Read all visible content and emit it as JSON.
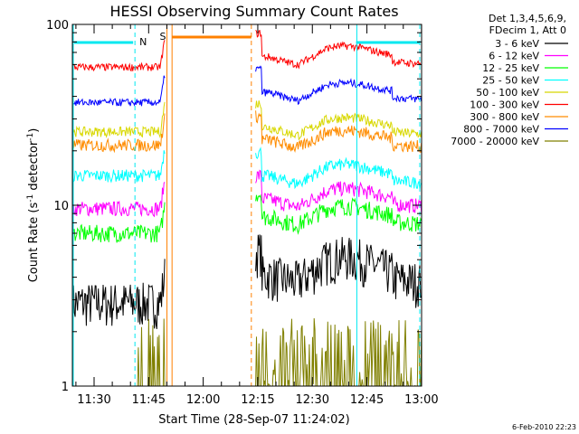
{
  "chart_data": {
    "type": "line",
    "title": "HESSI Observing Summary Count Rates",
    "xlabel": "Start Time (28-Sep-07 11:24:02)",
    "ylabel_main": "Count Rate (s",
    "ylabel_sup": "-1",
    "ylabel_tail": " detector",
    "ylabel_end": ")",
    "y_scale": "log",
    "ylim": [
      1,
      100
    ],
    "xlim_minutes": [
      0,
      96
    ],
    "x_ticks": [
      {
        "label": "11:30",
        "t": 5.97
      },
      {
        "label": "11:45",
        "t": 20.97
      },
      {
        "label": "12:00",
        "t": 35.97
      },
      {
        "label": "12:15",
        "t": 50.97
      },
      {
        "label": "12:30",
        "t": 65.97
      },
      {
        "label": "12:45",
        "t": 80.97
      },
      {
        "label": "13:00",
        "t": 95.97
      }
    ],
    "y_ticks": [
      {
        "label": "1",
        "v": 1
      },
      {
        "label": "10",
        "v": 10
      },
      {
        "label": "100",
        "v": 100
      }
    ],
    "legend_header": [
      "Det 1,3,4,5,6,9,",
      "FDecim 1, Att 0"
    ],
    "legend_position": "right",
    "flags": [
      {
        "label": "N",
        "color": "#00e8f0"
      },
      {
        "label": "S",
        "color": "#ff8000"
      }
    ],
    "series": [
      {
        "name": "3 - 6 keV",
        "color": "#000000",
        "pre": 2.9,
        "post": 4.1,
        "bump": 1.1,
        "noise": 0.18
      },
      {
        "name": "6 - 12 keV",
        "color": "#ff00ff",
        "pre": 9.6,
        "post": 10.8,
        "bump": 1.6,
        "noise": 0.06
      },
      {
        "name": "12 - 25 keV",
        "color": "#00ff00",
        "pre": 7.0,
        "post": 8.6,
        "bump": 1.3,
        "noise": 0.07
      },
      {
        "name": "25 - 50 keV",
        "color": "#00ffff",
        "pre": 14.6,
        "post": 14.5,
        "bump": 2.3,
        "noise": 0.05
      },
      {
        "name": "50 - 100 keV",
        "color": "#d8d800",
        "pre": 25.5,
        "post": 27.0,
        "bump": 3.5,
        "noise": 0.04
      },
      {
        "name": "100 - 300 keV",
        "color": "#ff0000",
        "pre": 58.0,
        "post": 66.0,
        "bump": 10.0,
        "noise": 0.03
      },
      {
        "name": "300 - 800 keV",
        "color": "#ff8c00",
        "pre": 21.5,
        "post": 23.0,
        "bump": 3.0,
        "noise": 0.05
      },
      {
        "name": "800 - 7000 keV",
        "color": "#0000ff",
        "pre": 37.0,
        "post": 42.0,
        "bump": 5.5,
        "noise": 0.03
      },
      {
        "name": "7000 - 20000 keV",
        "color": "#808000",
        "pre": 1.0,
        "post": 1.2,
        "bump": 0.2,
        "noise": 0.0
      }
    ],
    "stamp": "6-Feb-2010 22:23"
  }
}
